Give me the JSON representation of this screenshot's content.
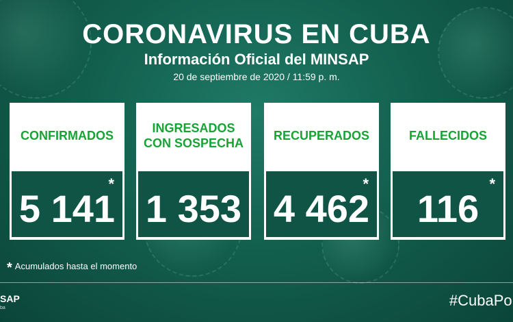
{
  "header": {
    "title": "CORONAVIRUS EN CUBA",
    "subtitle": "Información Oficial del MINSAP",
    "date": "20 de septiembre de 2020 / 11:59 p. m."
  },
  "cards": [
    {
      "label": "CONFIRMADOS",
      "value": "5 141",
      "asterisk": "*"
    },
    {
      "label": "INGRESADOS\nCON SOSPECHA",
      "value": "1 353",
      "asterisk": ""
    },
    {
      "label": "RECUPERADOS",
      "value": "4 462",
      "asterisk": "*"
    },
    {
      "label": "FALLECIDOS",
      "value": "116",
      "asterisk": "*"
    }
  ],
  "footnote": {
    "star": "*",
    "text": "Acumulados hasta el momento"
  },
  "footer": {
    "logo": "SAP",
    "logo_sub": "ba",
    "hashtag": "#CubaPor"
  },
  "colors": {
    "label_green": "#18a335",
    "value_bg": "#0f5445",
    "background": "#13604f"
  }
}
